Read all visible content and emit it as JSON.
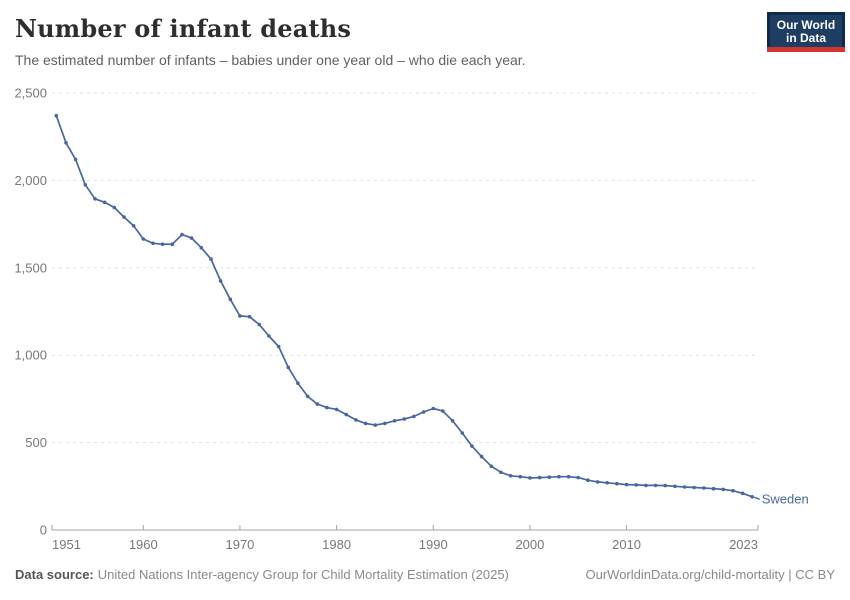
{
  "header": {
    "title": "Number of infant deaths",
    "subtitle": "The estimated number of infants – babies under one year old – who die each year.",
    "logo": {
      "line1": "Our World",
      "line2": "in Data"
    }
  },
  "chart_data": {
    "type": "line",
    "title": "Number of infant deaths",
    "xlabel": "",
    "ylabel": "",
    "xlim": [
      1951,
      2023
    ],
    "ylim": [
      0,
      2500
    ],
    "x_tick_labels": [
      "1951",
      "1960",
      "1970",
      "1980",
      "1990",
      "2000",
      "2010",
      "2023"
    ],
    "y_ticks": [
      0,
      500,
      1000,
      1500,
      2000,
      2500
    ],
    "grid": "horizontal-dashed",
    "legend_position": "end-of-line-label",
    "end_label": "Sweden",
    "series": [
      {
        "name": "Sweden",
        "color": "#4767A4",
        "years": [
          1951,
          1952,
          1953,
          1954,
          1955,
          1956,
          1957,
          1958,
          1959,
          1960,
          1961,
          1962,
          1963,
          1964,
          1965,
          1966,
          1967,
          1968,
          1969,
          1970,
          1971,
          1972,
          1973,
          1974,
          1975,
          1976,
          1977,
          1978,
          1979,
          1980,
          1981,
          1982,
          1983,
          1984,
          1985,
          1986,
          1987,
          1988,
          1989,
          1990,
          1991,
          1992,
          1993,
          1994,
          1995,
          1996,
          1997,
          1998,
          1999,
          2000,
          2001,
          2002,
          2003,
          2004,
          2005,
          2006,
          2007,
          2008,
          2009,
          2010,
          2011,
          2012,
          2013,
          2014,
          2015,
          2016,
          2017,
          2018,
          2019,
          2020,
          2021,
          2022,
          2023
        ],
        "values": [
          2370,
          2215,
          2120,
          1975,
          1895,
          1875,
          1845,
          1790,
          1740,
          1665,
          1640,
          1635,
          1635,
          1690,
          1670,
          1615,
          1550,
          1425,
          1320,
          1225,
          1220,
          1175,
          1110,
          1050,
          930,
          840,
          765,
          720,
          700,
          690,
          660,
          630,
          610,
          600,
          610,
          625,
          635,
          650,
          675,
          695,
          680,
          625,
          555,
          480,
          420,
          365,
          330,
          310,
          305,
          298,
          300,
          302,
          305,
          305,
          300,
          285,
          275,
          270,
          265,
          260,
          258,
          255,
          255,
          254,
          250,
          246,
          243,
          240,
          236,
          232,
          225,
          210,
          190
        ]
      }
    ]
  },
  "footer": {
    "source_label": "Data source:",
    "source_text": "United Nations Inter-agency Group for Child Mortality Estimation (2025)",
    "link_text": "OurWorldinData.org/child-mortality | CC BY"
  },
  "colors": {
    "line": "#4767A4",
    "grid": "#E2E2E2",
    "axis": "#A3A3A3",
    "tick_text": "#787878",
    "logo_bg": "#1D3D63",
    "logo_red": "#D2352F"
  }
}
